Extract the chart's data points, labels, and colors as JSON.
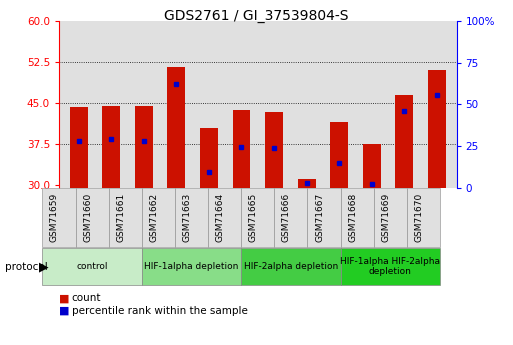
{
  "title": "GDS2761 / GI_37539804-S",
  "samples": [
    "GSM71659",
    "GSM71660",
    "GSM71661",
    "GSM71662",
    "GSM71663",
    "GSM71664",
    "GSM71665",
    "GSM71666",
    "GSM71667",
    "GSM71668",
    "GSM71669",
    "GSM71670"
  ],
  "counts": [
    44.3,
    44.5,
    44.4,
    51.5,
    40.5,
    43.8,
    43.3,
    31.2,
    41.5,
    37.5,
    46.5,
    51.0
  ],
  "percentiles": [
    38.0,
    38.5,
    38.0,
    48.5,
    32.5,
    37.0,
    36.8,
    30.5,
    34.0,
    30.2,
    43.5,
    46.5
  ],
  "ylim_left": [
    29.5,
    60
  ],
  "ylim_right": [
    0,
    100
  ],
  "yticks_left": [
    30,
    37.5,
    45,
    52.5,
    60
  ],
  "yticks_right": [
    0,
    25,
    50,
    75,
    100
  ],
  "gridlines": [
    37.5,
    45,
    52.5
  ],
  "bar_color": "#cc1100",
  "marker_color": "#0000cc",
  "bg_color": "#e0e0e0",
  "protocol_groups": [
    {
      "label": "control",
      "start": 0,
      "end": 2,
      "color": "#c8ecc8"
    },
    {
      "label": "HIF-1alpha depletion",
      "start": 3,
      "end": 5,
      "color": "#88dd88"
    },
    {
      "label": "HIF-2alpha depletion",
      "start": 6,
      "end": 8,
      "color": "#44cc44"
    },
    {
      "label": "HIF-1alpha HIF-2alpha\ndepletion",
      "start": 9,
      "end": 11,
      "color": "#22cc22"
    }
  ]
}
